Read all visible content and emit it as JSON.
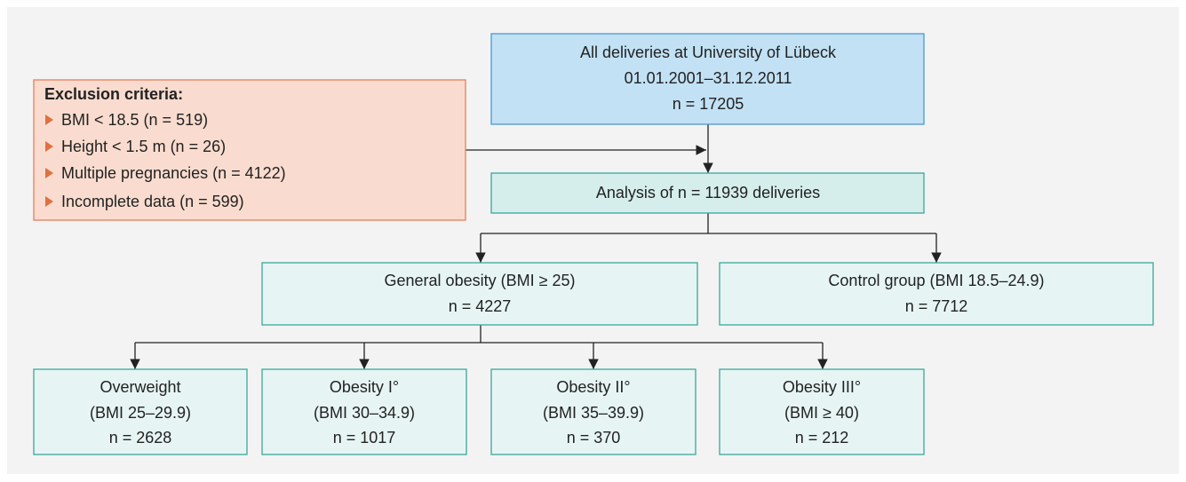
{
  "source": {
    "lines": [
      "All deliveries at University of Lübeck",
      "01.01.2001–31.12.2011",
      "n = 17205"
    ]
  },
  "exclusion": {
    "title": "Exclusion criteria:",
    "items": [
      "BMI < 18.5 (n = 519)",
      "Height < 1.5 m (n = 26)",
      "Multiple pregnancies (n = 4122)",
      "Incomplete data (n = 599)"
    ]
  },
  "analysis": {
    "label": "Analysis of n = 11939 deliveries"
  },
  "groups": [
    {
      "lines": [
        "General obesity (BMI ≥ 25)",
        "n = 4227"
      ]
    },
    {
      "lines": [
        "Control group (BMI 18.5–24.9)",
        "n = 7712"
      ]
    }
  ],
  "subgroups": [
    {
      "lines": [
        "Overweight",
        "(BMI 25–29.9)",
        "n = 2628"
      ]
    },
    {
      "lines": [
        "Obesity I°",
        "(BMI 30–34.9)",
        "n = 1017"
      ]
    },
    {
      "lines": [
        "Obesity II°",
        "(BMI 35–39.9)",
        "n = 370"
      ]
    },
    {
      "lines": [
        "Obesity III°",
        "(BMI ≥ 40)",
        "n = 212"
      ]
    }
  ]
}
